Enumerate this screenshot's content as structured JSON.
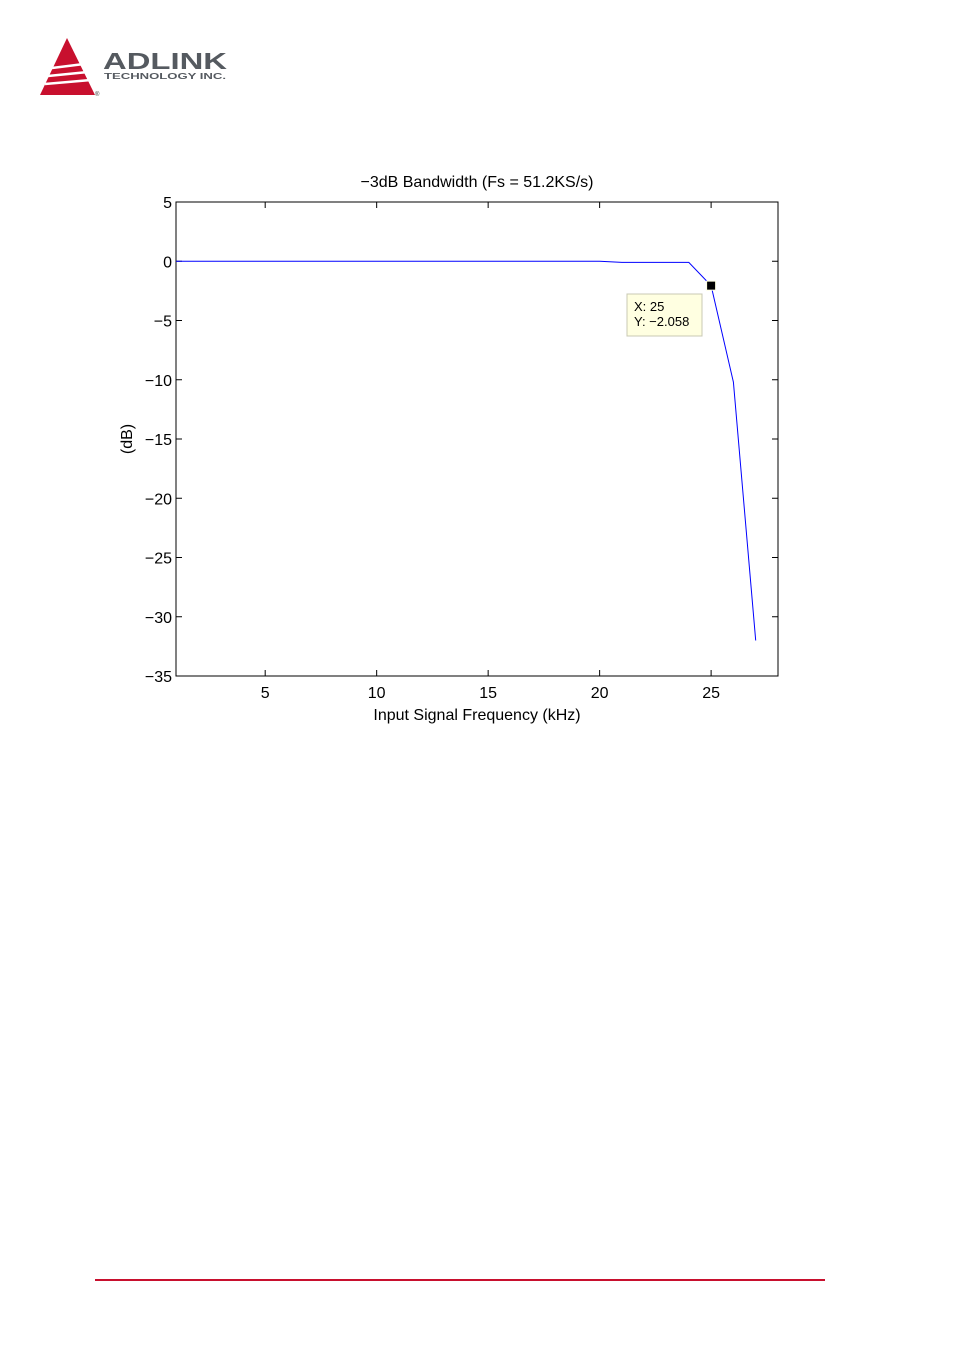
{
  "brand": {
    "name": "ADLINK",
    "tagline": "TECHNOLOGY INC.",
    "registered": "®",
    "accent_color": "#c8102e"
  },
  "chart_data": {
    "type": "line",
    "title": "−3dB Bandwidth (Fs = 51.2KS/s)",
    "xlabel": "Input Signal Frequency (kHz)",
    "ylabel": "(dB)",
    "xlim": [
      1,
      28
    ],
    "ylim": [
      -35,
      5
    ],
    "xticks": [
      5,
      10,
      15,
      20,
      25
    ],
    "yticks": [
      5,
      0,
      -5,
      -10,
      -15,
      -20,
      -25,
      -30,
      -35
    ],
    "xtick_labels": [
      "5",
      "10",
      "15",
      "20",
      "25"
    ],
    "ytick_labels": [
      "5",
      "0",
      "−5",
      "−10",
      "−15",
      "−20",
      "−25",
      "−30",
      "−35"
    ],
    "grid": false,
    "series": [
      {
        "color": "#0000ff",
        "x": [
          1,
          5,
          10,
          15,
          20,
          21,
          22,
          23,
          24,
          25,
          26,
          27
        ],
        "y": [
          0,
          0,
          0,
          0,
          0,
          -0.1,
          -0.1,
          -0.1,
          -0.1,
          -2.058,
          -10.2,
          -32
        ]
      }
    ],
    "datatip": {
      "x": 25,
      "y": -2.058,
      "line1": "X: 25",
      "line2": "Y: −2.058"
    }
  }
}
